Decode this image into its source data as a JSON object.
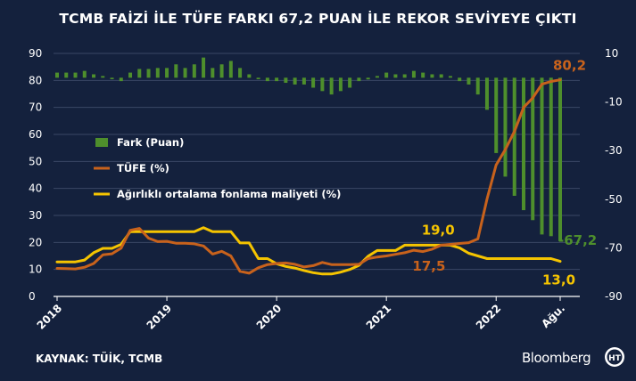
{
  "header": {
    "title": "TCMB FAİZİ İLE TÜFE FARKI 67,2 PUAN İLE REKOR SEVİYEYE ÇIKTI"
  },
  "footer": {
    "source": "KAYNAK: TÜİK, TCMB",
    "brand": "Bloomberg",
    "brand_logo": "HT"
  },
  "chart_data": {
    "type": "bar+line",
    "left_axis": {
      "ticks": [
        "0",
        "10",
        "20",
        "30",
        "40",
        "50",
        "60",
        "70",
        "80",
        "90"
      ],
      "min": 0,
      "max": 90
    },
    "right_axis": {
      "ticks": [
        "10",
        "-10",
        "-30",
        "-50",
        "-70",
        "-90"
      ],
      "min": -90,
      "max": 10
    },
    "x_axis": {
      "ticks": [
        "2018",
        "2019",
        "2020",
        "2021",
        "2022",
        "Ağu."
      ],
      "start": "2018-01",
      "end": "2022-08"
    },
    "legend": [
      "Fark (Puan)",
      "TÜFE (%)",
      "Ağırlıklı ortalama fonlama maliyeti (%)"
    ],
    "colors": {
      "bar": "#4e8f2c",
      "tufe": "#c8621c",
      "funding": "#f5c400",
      "background": "#14213d",
      "grid": "#3a4765"
    },
    "months": [
      "2018-01",
      "2018-02",
      "2018-03",
      "2018-04",
      "2018-05",
      "2018-06",
      "2018-07",
      "2018-08",
      "2018-09",
      "2018-10",
      "2018-11",
      "2018-12",
      "2019-01",
      "2019-02",
      "2019-03",
      "2019-04",
      "2019-05",
      "2019-06",
      "2019-07",
      "2019-08",
      "2019-09",
      "2019-10",
      "2019-11",
      "2019-12",
      "2020-01",
      "2020-02",
      "2020-03",
      "2020-04",
      "2020-05",
      "2020-06",
      "2020-07",
      "2020-08",
      "2020-09",
      "2020-10",
      "2020-11",
      "2020-12",
      "2021-01",
      "2021-02",
      "2021-03",
      "2021-04",
      "2021-05",
      "2021-06",
      "2021-07",
      "2021-08",
      "2021-09",
      "2021-10",
      "2021-11",
      "2021-12",
      "2022-01",
      "2022-02",
      "2022-03",
      "2022-04",
      "2022-05",
      "2022-06",
      "2022-07",
      "2022-08"
    ],
    "series": [
      {
        "name": "Fark (Puan)",
        "axis": "right",
        "values": [
          2.1,
          2.1,
          2.1,
          2.8,
          1.4,
          0.7,
          -0.6,
          -1.4,
          2.1,
          3.6,
          3.6,
          4.0,
          4.0,
          5.5,
          4.0,
          5.5,
          8.3,
          4.0,
          5.5,
          6.9,
          4.0,
          1.4,
          -0.6,
          -1.4,
          -1.4,
          -2.1,
          -2.8,
          -2.8,
          -4.1,
          -5.5,
          -6.9,
          -5.5,
          -4.1,
          -1.4,
          -0.7,
          0.7,
          2.1,
          1.4,
          1.4,
          2.8,
          2.1,
          1.4,
          1.4,
          0.7,
          -1.4,
          -2.8,
          -6.9,
          -13.2,
          -31.0,
          -40.7,
          -48.6,
          -54.5,
          -58.6,
          -64.5,
          -65.2,
          -67.2
        ]
      },
      {
        "name": "TÜFE (%)",
        "axis": "left",
        "values": [
          10.4,
          10.3,
          10.2,
          10.8,
          12.2,
          15.4,
          15.8,
          17.9,
          24.5,
          25.2,
          21.6,
          20.3,
          20.4,
          19.7,
          19.7,
          19.5,
          18.7,
          15.7,
          16.7,
          15.0,
          9.3,
          8.6,
          10.6,
          11.8,
          12.2,
          12.4,
          11.9,
          10.9,
          11.4,
          12.6,
          11.8,
          11.8,
          11.8,
          11.9,
          14.0,
          14.6,
          15.0,
          15.6,
          16.2,
          17.1,
          16.6,
          17.5,
          19.0,
          19.3,
          19.6,
          19.9,
          21.3,
          36.1,
          48.7,
          54.4,
          61.1,
          70.0,
          73.5,
          78.6,
          79.6,
          80.2
        ]
      },
      {
        "name": "Ağırlıklı ortalama fonlama maliyeti (%)",
        "axis": "left",
        "values": [
          12.8,
          12.8,
          12.8,
          13.5,
          16.2,
          17.8,
          17.8,
          19.3,
          24.0,
          24.0,
          24.0,
          24.0,
          24.0,
          24.0,
          24.0,
          24.0,
          25.5,
          24.0,
          24.0,
          24.0,
          19.8,
          19.8,
          14.0,
          14.0,
          12.1,
          11.1,
          10.5,
          9.6,
          8.8,
          8.3,
          8.3,
          9.0,
          10.0,
          11.5,
          14.9,
          17.0,
          17.0,
          17.0,
          19.0,
          19.0,
          19.0,
          19.0,
          19.0,
          19.0,
          18.0,
          16.0,
          15.0,
          14.0,
          14.0,
          14.0,
          14.0,
          14.0,
          14.0,
          14.0,
          14.0,
          13.0
        ]
      }
    ],
    "annotations": [
      {
        "text": "80,2",
        "series": "TÜFE (%)",
        "month": "2022-08",
        "color": "#c8621c"
      },
      {
        "text": "-67,2",
        "series": "Fark (Puan)",
        "month": "2022-08",
        "color": "#4e8f2c"
      },
      {
        "text": "19,0",
        "series": "Ağırlıklı ortalama fonlama maliyeti (%)",
        "month": "2021-07",
        "color": "#f5c400"
      },
      {
        "text": "17,5",
        "series": "TÜFE (%)",
        "month": "2021-06",
        "color": "#c8621c"
      },
      {
        "text": "13,0",
        "series": "Ağırlıklı ortalama fonlama maliyeti (%)",
        "month": "2022-08",
        "color": "#f5c400"
      }
    ]
  }
}
